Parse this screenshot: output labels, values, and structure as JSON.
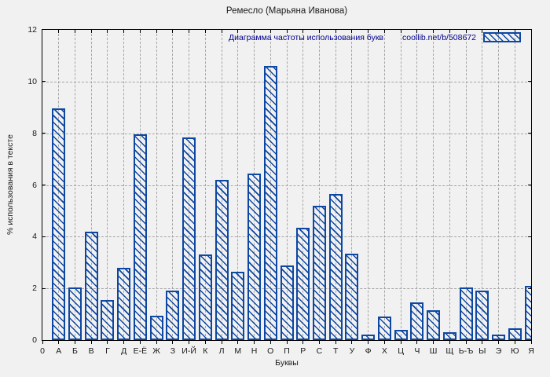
{
  "title": "Ремесло (Марьяна Иванова)",
  "colors": {
    "bar_blue": "#0d47a1",
    "legend_text": "#00008b",
    "grid": "#a6a6a6",
    "background": "#f1f1f1",
    "frame": "#000000"
  },
  "chart_data": {
    "type": "bar",
    "title": "Ремесло (Марьяна Иванова)",
    "xlabel": "Буквы",
    "ylabel": "% использования в тексте",
    "legend_label": "Диаграмма частоты использования букв",
    "legend_source": "coollib.net/b/508672",
    "legend_position": "top-right",
    "grid": true,
    "hatch": "backslash-diagonal",
    "ylim": [
      0,
      12
    ],
    "yticks": [
      0,
      2,
      4,
      6,
      8,
      10,
      12
    ],
    "origin_label": "0",
    "categories": [
      "А",
      "Б",
      "В",
      "Г",
      "Д",
      "Е-Ё",
      "Ж",
      "З",
      "И-Й",
      "К",
      "Л",
      "М",
      "Н",
      "О",
      "П",
      "Р",
      "С",
      "Т",
      "У",
      "Ф",
      "Х",
      "Ц",
      "Ч",
      "Ш",
      "Щ",
      "Ь-Ъ",
      "Ы",
      "Э",
      "Ю",
      "Я"
    ],
    "values": [
      8.95,
      2.05,
      4.2,
      1.55,
      2.8,
      7.95,
      0.95,
      1.9,
      7.85,
      3.3,
      6.2,
      2.65,
      6.45,
      10.6,
      2.9,
      4.35,
      5.2,
      5.65,
      3.35,
      0.2,
      0.9,
      0.4,
      1.45,
      1.15,
      0.3,
      2.05,
      1.9,
      0.2,
      0.45,
      2.1
    ]
  }
}
